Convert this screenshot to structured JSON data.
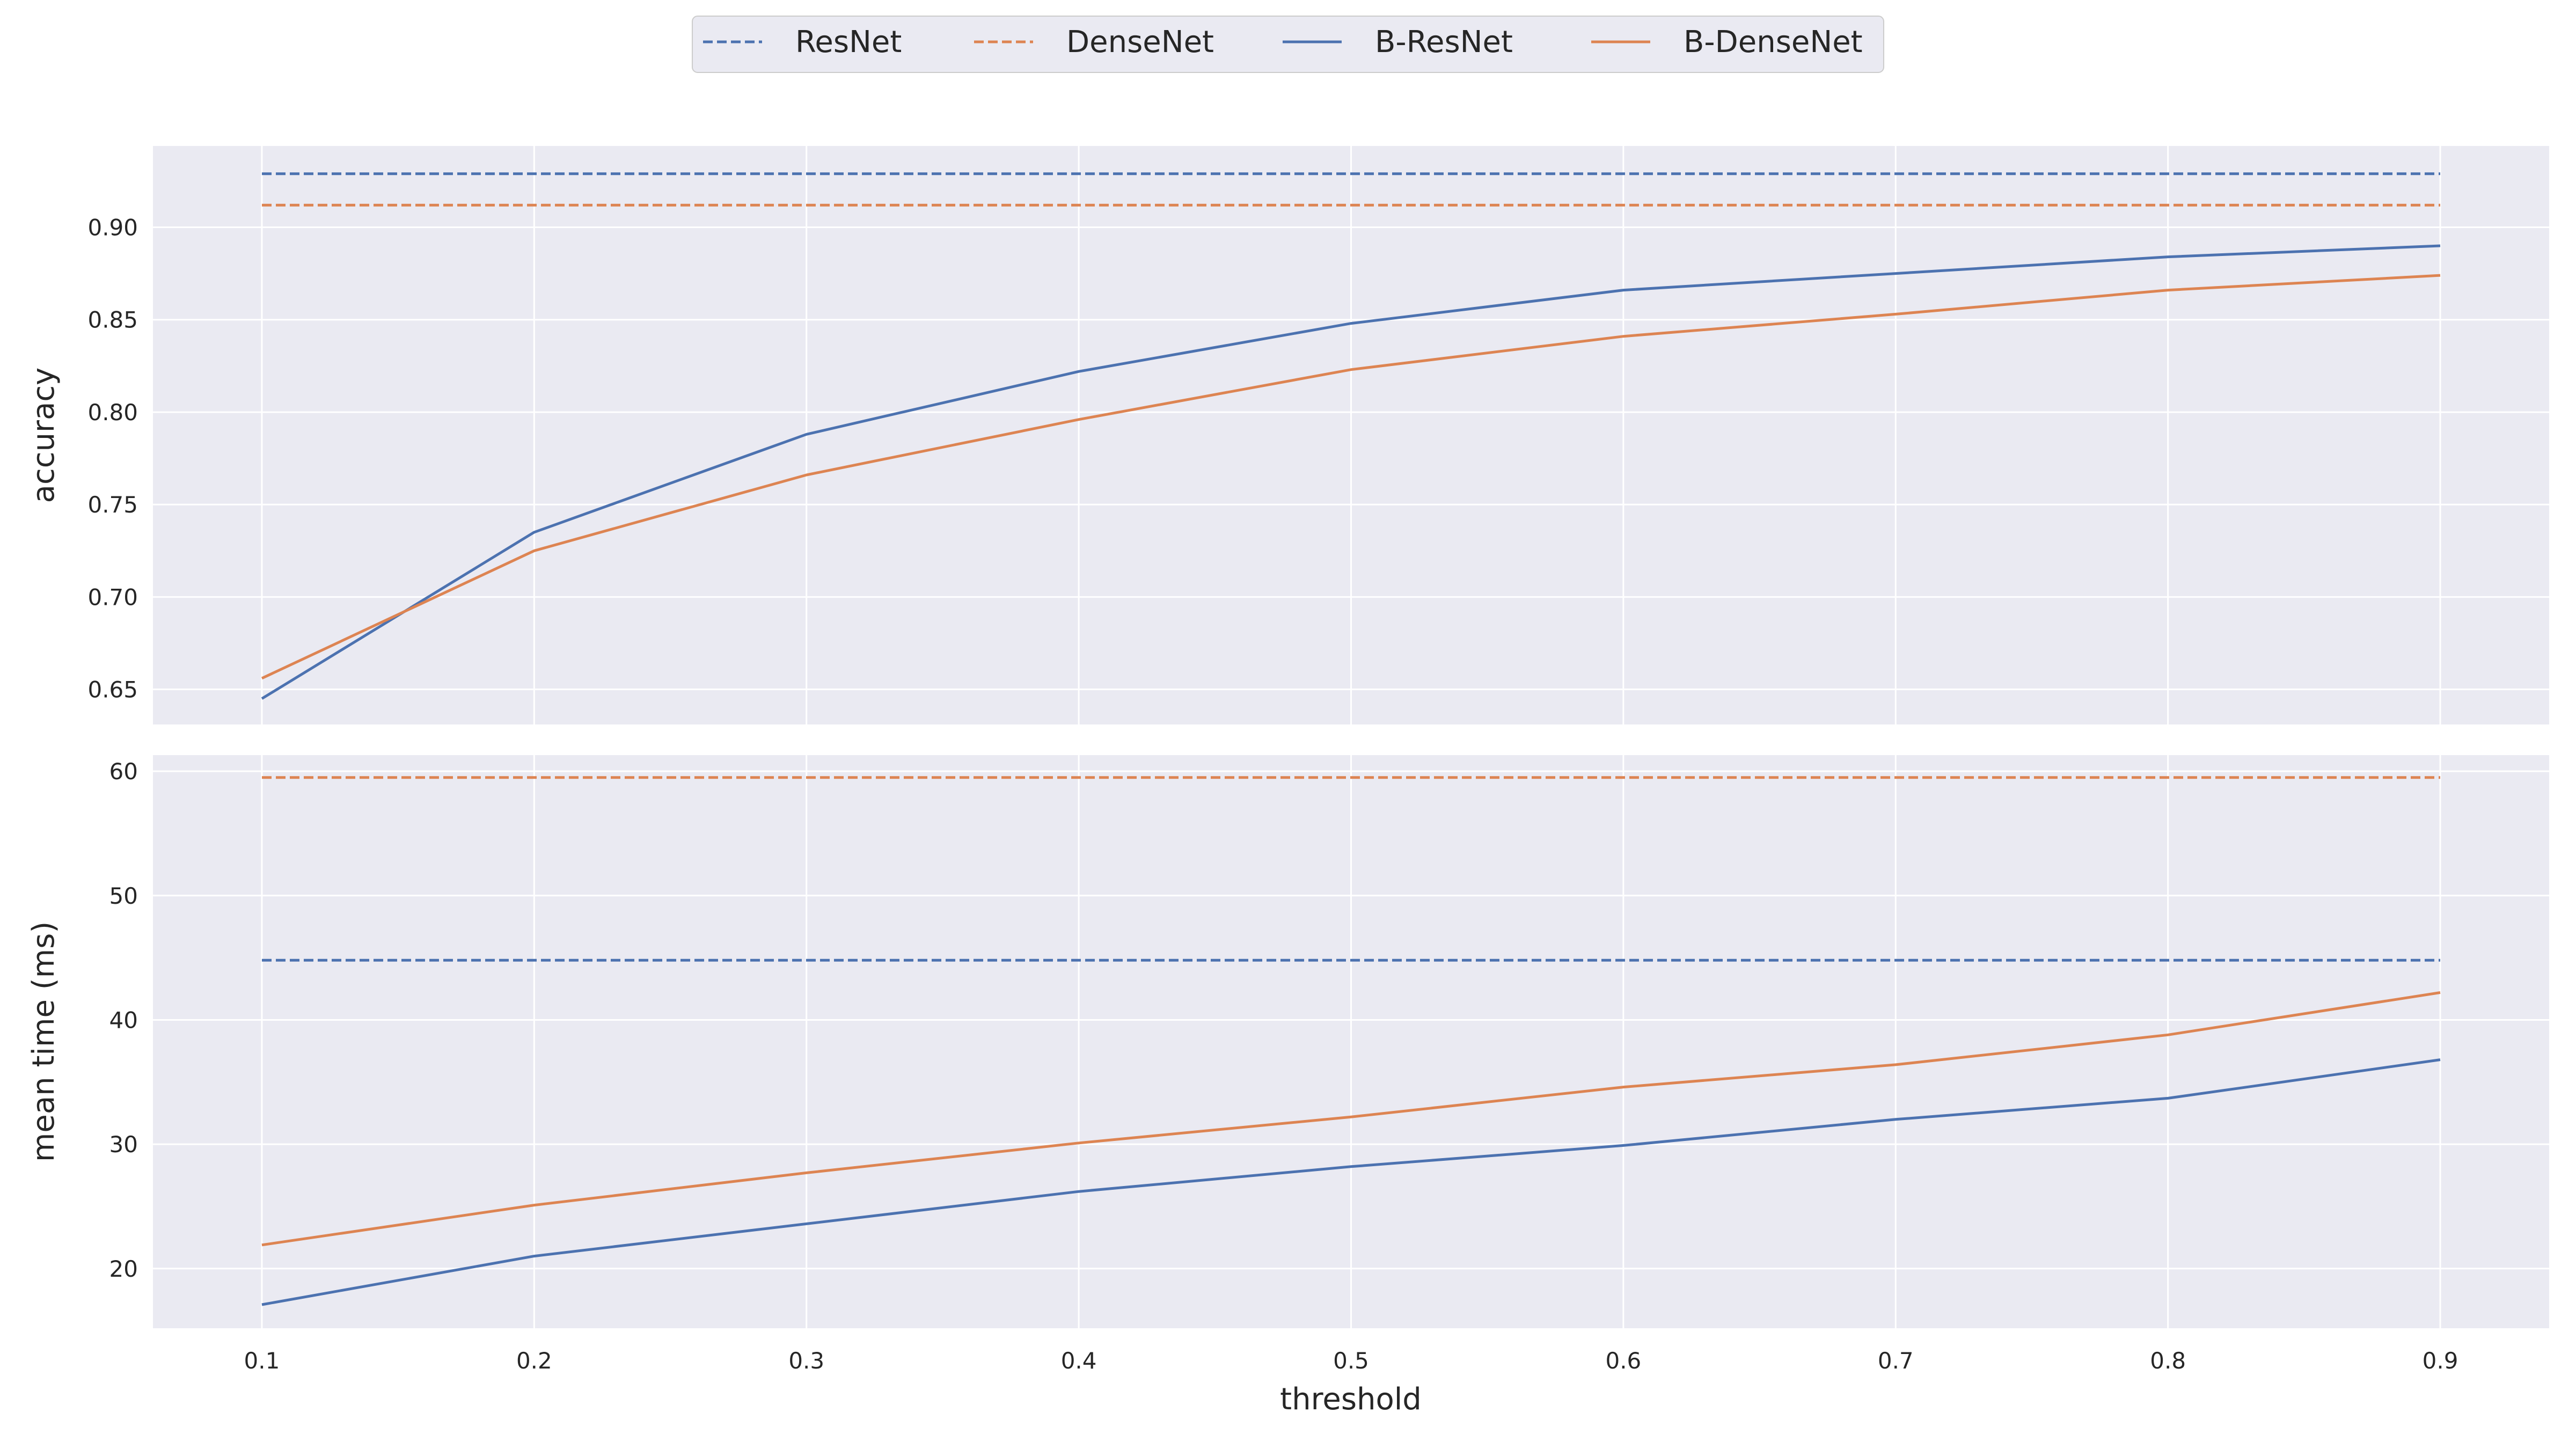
{
  "chart_data": {
    "type": "line",
    "legend": {
      "placement": "top-center",
      "entries": [
        {
          "label": "ResNet",
          "color": "#4c72b0",
          "style": "dashed"
        },
        {
          "label": "DenseNet",
          "color": "#dd8452",
          "style": "dashed"
        },
        {
          "label": "B-ResNet",
          "color": "#4c72b0",
          "style": "solid"
        },
        {
          "label": "B-DenseNet",
          "color": "#dd8452",
          "style": "solid"
        }
      ]
    },
    "x": [
      0.1,
      0.2,
      0.3,
      0.4,
      0.5,
      0.6,
      0.7,
      0.8,
      0.9
    ],
    "xlabel": "threshold",
    "xticks": [
      "0.1",
      "0.2",
      "0.3",
      "0.4",
      "0.5",
      "0.6",
      "0.7",
      "0.8",
      "0.9"
    ],
    "xlim": [
      0.06,
      0.94
    ],
    "grid": true,
    "panels": [
      {
        "ylabel": "accuracy",
        "ylim": [
          0.631,
          0.944
        ],
        "yticks": [
          0.65,
          0.7,
          0.75,
          0.8,
          0.85,
          0.9
        ],
        "ytick_labels": [
          "0.65",
          "0.70",
          "0.75",
          "0.80",
          "0.85",
          "0.90"
        ],
        "series": [
          {
            "name": "ResNet",
            "style": "dashed",
            "color": "#4c72b0",
            "values": [
              0.929,
              0.929,
              0.929,
              0.929,
              0.929,
              0.929,
              0.929,
              0.929,
              0.929
            ]
          },
          {
            "name": "DenseNet",
            "style": "dashed",
            "color": "#dd8452",
            "values": [
              0.912,
              0.912,
              0.912,
              0.912,
              0.912,
              0.912,
              0.912,
              0.912,
              0.912
            ]
          },
          {
            "name": "B-ResNet",
            "style": "solid",
            "color": "#4c72b0",
            "values": [
              0.645,
              0.735,
              0.788,
              0.822,
              0.848,
              0.866,
              0.875,
              0.884,
              0.89
            ]
          },
          {
            "name": "B-DenseNet",
            "style": "solid",
            "color": "#dd8452",
            "values": [
              0.656,
              0.725,
              0.766,
              0.796,
              0.823,
              0.841,
              0.853,
              0.866,
              0.874
            ]
          }
        ]
      },
      {
        "ylabel": "mean time (ms)",
        "ylim": [
          15.2,
          61.3
        ],
        "yticks": [
          20,
          30,
          40,
          50,
          60
        ],
        "ytick_labels": [
          "20",
          "30",
          "40",
          "50",
          "60"
        ],
        "series": [
          {
            "name": "ResNet",
            "style": "dashed",
            "color": "#4c72b0",
            "values": [
              44.8,
              44.8,
              44.8,
              44.8,
              44.8,
              44.8,
              44.8,
              44.8,
              44.8
            ]
          },
          {
            "name": "DenseNet",
            "style": "dashed",
            "color": "#dd8452",
            "values": [
              59.5,
              59.5,
              59.5,
              59.5,
              59.5,
              59.5,
              59.5,
              59.5,
              59.5
            ]
          },
          {
            "name": "B-ResNet",
            "style": "solid",
            "color": "#4c72b0",
            "values": [
              17.1,
              21.0,
              23.6,
              26.2,
              28.2,
              29.9,
              32.0,
              33.7,
              36.8
            ]
          },
          {
            "name": "B-DenseNet",
            "style": "solid",
            "color": "#dd8452",
            "values": [
              21.9,
              25.1,
              27.7,
              30.1,
              32.2,
              34.6,
              36.4,
              38.8,
              42.2
            ]
          }
        ]
      }
    ]
  }
}
